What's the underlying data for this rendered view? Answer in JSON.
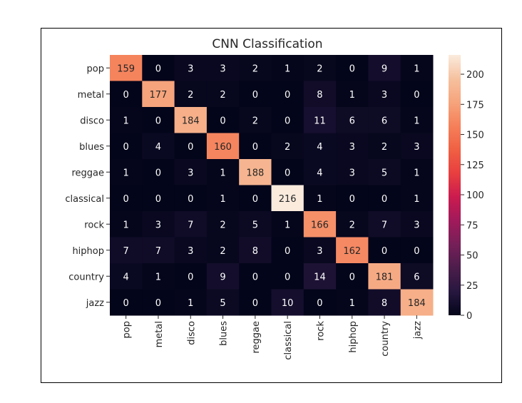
{
  "chart_data": {
    "type": "heatmap",
    "title": "CNN Classification",
    "xlabel": "",
    "ylabel": "",
    "row_labels": [
      "pop",
      "metal",
      "disco",
      "blues",
      "reggae",
      "classical",
      "rock",
      "hiphop",
      "country",
      "jazz"
    ],
    "col_labels": [
      "pop",
      "metal",
      "disco",
      "blues",
      "reggae",
      "classical",
      "rock",
      "hiphop",
      "country",
      "jazz"
    ],
    "values": [
      [
        159,
        0,
        3,
        3,
        2,
        1,
        2,
        0,
        9,
        1
      ],
      [
        0,
        177,
        2,
        2,
        0,
        0,
        8,
        1,
        3,
        0
      ],
      [
        1,
        0,
        184,
        0,
        2,
        0,
        11,
        6,
        6,
        1
      ],
      [
        0,
        4,
        0,
        160,
        0,
        2,
        4,
        3,
        2,
        3
      ],
      [
        1,
        0,
        3,
        1,
        188,
        0,
        4,
        3,
        5,
        1
      ],
      [
        0,
        0,
        0,
        1,
        0,
        216,
        1,
        0,
        0,
        1
      ],
      [
        1,
        3,
        7,
        2,
        5,
        1,
        166,
        2,
        7,
        3
      ],
      [
        7,
        7,
        3,
        2,
        8,
        0,
        3,
        162,
        0,
        0
      ],
      [
        4,
        1,
        0,
        9,
        0,
        0,
        14,
        0,
        181,
        6
      ],
      [
        0,
        0,
        1,
        5,
        0,
        10,
        0,
        1,
        8,
        184
      ]
    ],
    "colorbar": {
      "min": 0,
      "max": 216,
      "ticks": [
        0,
        25,
        50,
        75,
        100,
        125,
        150,
        175,
        200
      ],
      "tick_labels": [
        "0",
        "25",
        "50",
        "75",
        "100",
        "125",
        "150",
        "175",
        "200"
      ],
      "colormap": "rocket",
      "stops": [
        "#03051a",
        "#27173f",
        "#4c1d4b",
        "#761f58",
        "#a11a5b",
        "#cb1b4f",
        "#e83f3f",
        "#f06043",
        "#f5805a",
        "#f6a47c",
        "#f6c19f",
        "#faebdd"
      ]
    }
  }
}
